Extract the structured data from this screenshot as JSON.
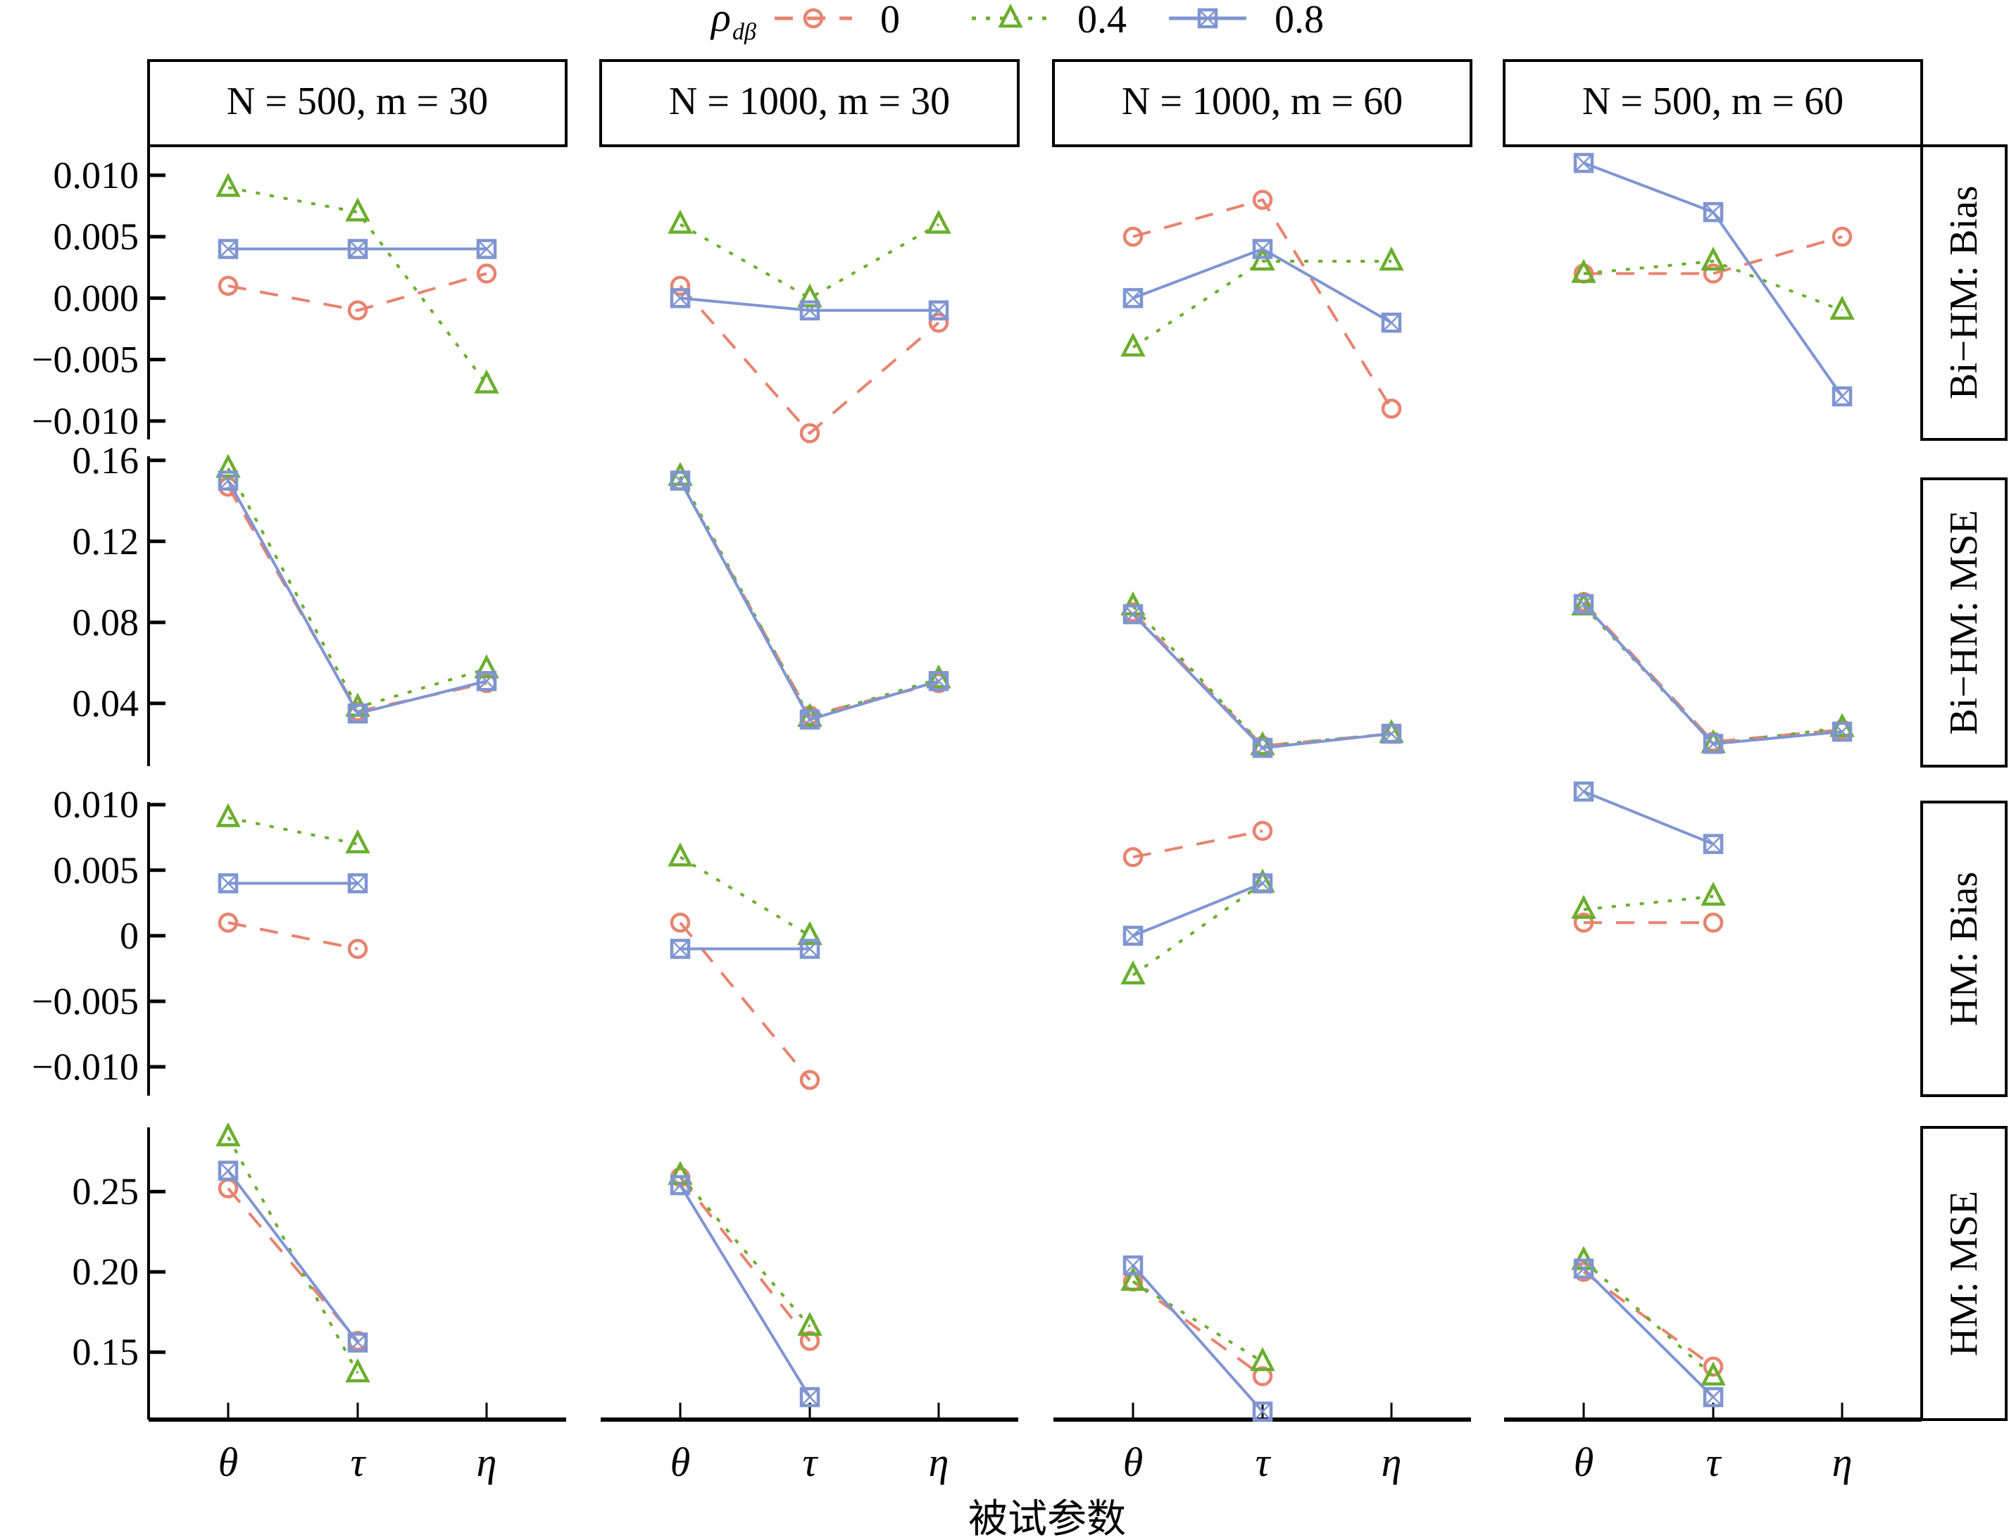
{
  "chart_data": {
    "type": "line",
    "layout": "facet-grid",
    "xlabel": "被试参数",
    "categories": [
      "θ",
      "τ",
      "η"
    ],
    "legend": {
      "title": "ρ",
      "title_subscript": "dβ",
      "placement": "top",
      "entries": [
        {
          "name": "0",
          "color": "#E8836F",
          "dash": "dashed",
          "marker": "circle"
        },
        {
          "name": "0.4",
          "color": "#6AAE2D",
          "dash": "dotted",
          "marker": "triangle"
        },
        {
          "name": "0.8",
          "color": "#7F95D2",
          "dash": "solid",
          "marker": "boxed-x"
        }
      ]
    },
    "columns": [
      {
        "label": "N = 500, m = 30",
        "N": "500",
        "m": "30"
      },
      {
        "label": "N = 1000, m = 30",
        "N": "1000",
        "m": "30"
      },
      {
        "label": "N = 1000, m = 60",
        "N": "1000",
        "m": "60"
      },
      {
        "label": "N = 500, m = 60",
        "N": "500",
        "m": "60"
      }
    ],
    "rows": [
      {
        "label": "Bi−HM: Bias",
        "ylim": [
          -0.0115,
          0.0124
        ],
        "ticks": [
          0.01,
          0.005,
          0.0,
          -0.005,
          -0.01
        ],
        "tick_labels": [
          "0.010",
          "0.005",
          "0.000",
          "−0.005",
          "−0.010"
        ],
        "panels": [
          {
            "series": [
              [
                0.001,
                -0.001,
                0.002
              ],
              [
                0.009,
                0.007,
                -0.007
              ],
              [
                0.004,
                0.004,
                0.004
              ]
            ]
          },
          {
            "series": [
              [
                0.001,
                -0.011,
                -0.002
              ],
              [
                0.006,
                0.0,
                0.006
              ],
              [
                0.0,
                -0.001,
                -0.001
              ]
            ]
          },
          {
            "series": [
              [
                0.005,
                0.008,
                -0.009
              ],
              [
                -0.004,
                0.003,
                0.003
              ],
              [
                0.0,
                0.004,
                -0.002
              ]
            ]
          },
          {
            "series": [
              [
                0.002,
                0.002,
                0.005
              ],
              [
                0.002,
                0.003,
                -0.001
              ],
              [
                0.011,
                0.007,
                -0.008
              ]
            ]
          }
        ]
      },
      {
        "label": "Bi−HM: MSE",
        "ylim": [
          0.009,
          0.162
        ],
        "ticks": [
          0.16,
          0.12,
          0.08,
          0.04
        ],
        "tick_labels": [
          "0.16",
          "0.12",
          "0.08",
          "0.04"
        ],
        "panels": [
          {
            "series": [
              [
                0.147,
                0.036,
                0.05
              ],
              [
                0.156,
                0.038,
                0.057
              ],
              [
                0.15,
                0.035,
                0.051
              ]
            ]
          },
          {
            "series": [
              [
                0.15,
                0.034,
                0.05
              ],
              [
                0.152,
                0.033,
                0.052
              ],
              [
                0.15,
                0.032,
                0.051
              ]
            ]
          },
          {
            "series": [
              [
                0.085,
                0.019,
                0.025
              ],
              [
                0.088,
                0.019,
                0.025
              ],
              [
                0.084,
                0.018,
                0.025
              ]
            ]
          },
          {
            "series": [
              [
                0.09,
                0.021,
                0.027
              ],
              [
                0.088,
                0.02,
                0.028
              ],
              [
                0.089,
                0.02,
                0.026
              ]
            ]
          }
        ]
      },
      {
        "label": "HM: Bias",
        "ylim": [
          -0.0122,
          0.0102
        ],
        "ticks": [
          0.01,
          0.005,
          0,
          -0.005,
          -0.01
        ],
        "tick_labels": [
          "0.010",
          "0.005",
          "0",
          "−0.005",
          "−0.010"
        ],
        "panels": [
          {
            "series": [
              [
                0.001,
                -0.001,
                null
              ],
              [
                0.009,
                0.007,
                null
              ],
              [
                0.004,
                0.004,
                null
              ]
            ]
          },
          {
            "series": [
              [
                0.001,
                -0.011,
                null
              ],
              [
                0.006,
                0.0,
                null
              ],
              [
                -0.001,
                -0.001,
                null
              ]
            ]
          },
          {
            "series": [
              [
                0.006,
                0.008,
                null
              ],
              [
                -0.003,
                0.004,
                null
              ],
              [
                0.0,
                0.004,
                null
              ]
            ]
          },
          {
            "series": [
              [
                0.001,
                0.001,
                null
              ],
              [
                0.002,
                0.003,
                null
              ],
              [
                0.011,
                0.007,
                null
              ]
            ]
          }
        ]
      },
      {
        "label": "HM: MSE",
        "ylim": [
          0.108,
          0.29
        ],
        "ticks": [
          0.25,
          0.2,
          0.15
        ],
        "tick_labels": [
          "0.25",
          "0.20",
          "0.15"
        ],
        "panels": [
          {
            "series": [
              [
                0.252,
                0.157,
                null
              ],
              [
                0.284,
                0.137,
                null
              ],
              [
                0.263,
                0.156,
                null
              ]
            ]
          },
          {
            "series": [
              [
                0.259,
                0.157,
                null
              ],
              [
                0.26,
                0.166,
                null
              ],
              [
                0.254,
                0.122,
                null
              ]
            ]
          },
          {
            "series": [
              [
                0.194,
                0.135,
                null
              ],
              [
                0.194,
                0.144,
                null
              ],
              [
                0.204,
                0.113,
                null
              ]
            ]
          },
          {
            "series": [
              [
                0.2,
                0.141,
                null
              ],
              [
                0.207,
                0.135,
                null
              ],
              [
                0.202,
                0.122,
                null
              ]
            ]
          }
        ]
      }
    ]
  }
}
